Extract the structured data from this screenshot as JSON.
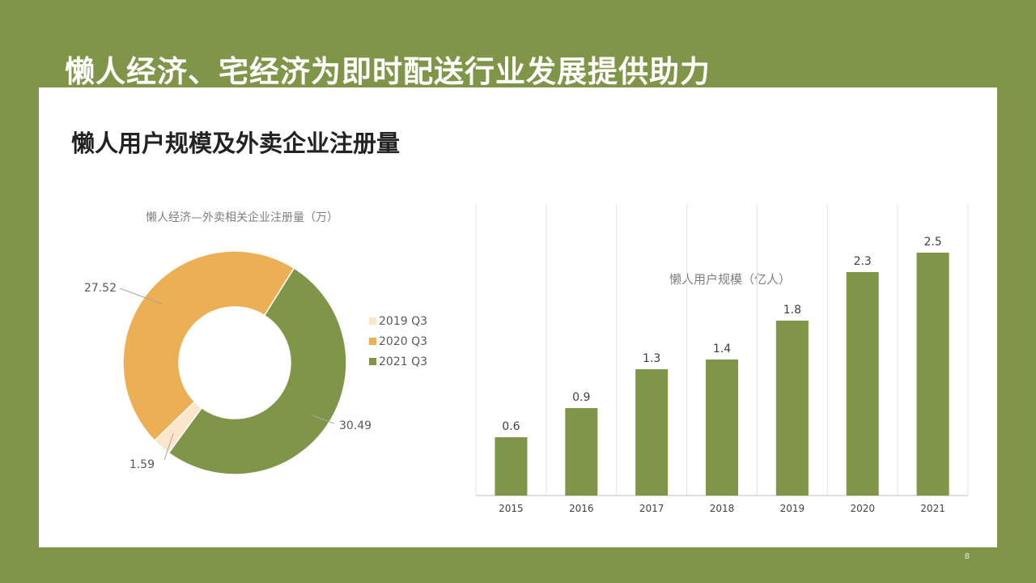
{
  "slide_title": "懒人经济、宅经济为即时配送行业发展提供助力",
  "section_title": "懒人用户规模及外卖企业注册量",
  "page_number": "8",
  "chart_data": [
    {
      "type": "pie",
      "variant": "donut",
      "title": "懒人经济—外卖相关企业注册量（万）",
      "categories": [
        "2019 Q3",
        "2020 Q3",
        "2021 Q3"
      ],
      "values": [
        1.59,
        27.52,
        30.49
      ],
      "data_labels": [
        "1.59",
        "27.52",
        "30.49"
      ],
      "colors": [
        "#fbe5cb",
        "#edaf54",
        "#7f9648"
      ],
      "legend_position": "right"
    },
    {
      "type": "bar",
      "title": "懒人用户规模（亿人）",
      "categories": [
        "2015",
        "2016",
        "2017",
        "2018",
        "2019",
        "2020",
        "2021"
      ],
      "values": [
        0.6,
        0.9,
        1.3,
        1.4,
        1.8,
        2.3,
        2.5
      ],
      "data_labels": [
        "0.6",
        "0.9",
        "1.3",
        "1.4",
        "1.8",
        "2.3",
        "2.5"
      ],
      "ylim": [
        0,
        3.0
      ],
      "grid": "vertical-category",
      "bar_color": "#7f9648"
    }
  ]
}
